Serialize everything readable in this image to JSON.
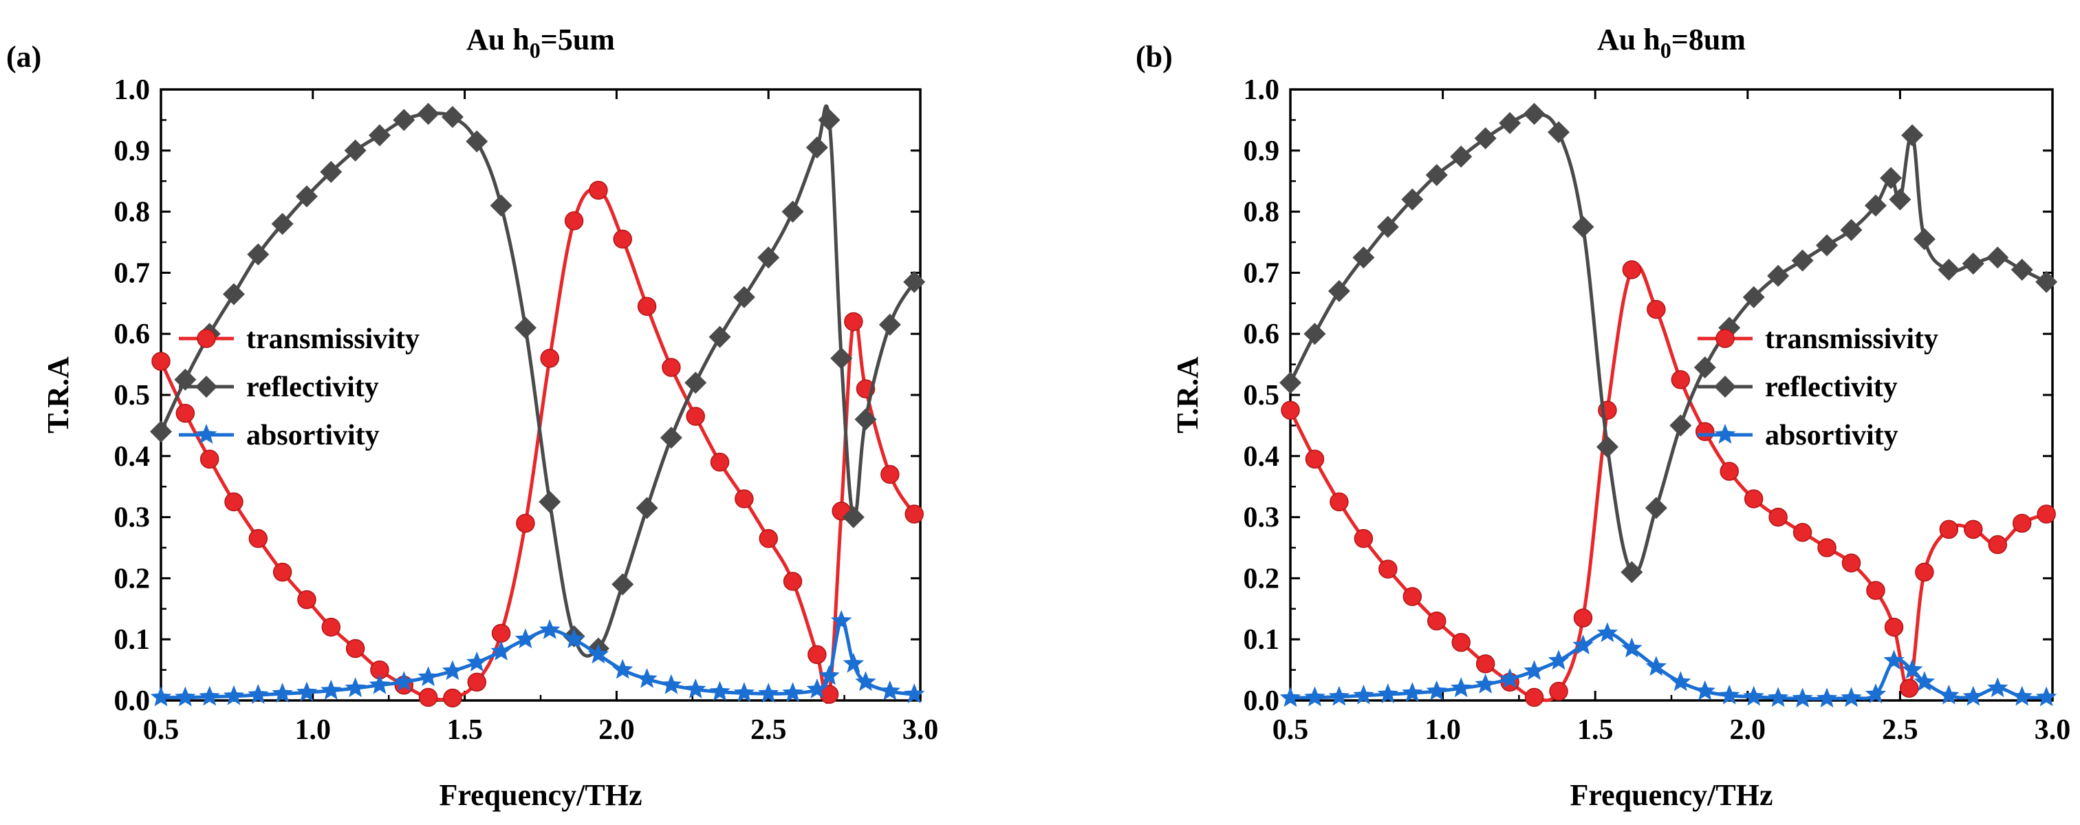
{
  "chart_data": [
    {
      "panel_label": "(a)",
      "type": "line",
      "title": "Au h0=5um",
      "title_main": "Au h",
      "title_sub": "0",
      "title_tail": "=5um",
      "xlabel": "Frequency/THz",
      "ylabel": "T.R.A",
      "xlim": [
        0.5,
        3.0
      ],
      "ylim": [
        0.0,
        1.0
      ],
      "xticks": [
        0.5,
        1.0,
        1.5,
        2.0,
        2.5,
        3.0
      ],
      "xtick_labels": [
        "0.5",
        "1.0",
        "1.5",
        "2.0",
        "2.5",
        "3.0"
      ],
      "yticks": [
        0.0,
        0.1,
        0.2,
        0.3,
        0.4,
        0.5,
        0.6,
        0.7,
        0.8,
        0.9,
        1.0
      ],
      "ytick_labels": [
        "0.0",
        "0.1",
        "0.2",
        "0.3",
        "0.4",
        "0.5",
        "0.6",
        "0.7",
        "0.8",
        "0.9",
        "1.0"
      ],
      "legend_position": "middle-left",
      "series": [
        {
          "name": "transmissivity",
          "color": "#e8272a",
          "marker": "circle",
          "x": [
            0.5,
            0.58,
            0.66,
            0.74,
            0.82,
            0.9,
            0.98,
            1.06,
            1.14,
            1.22,
            1.3,
            1.38,
            1.46,
            1.54,
            1.62,
            1.7,
            1.78,
            1.86,
            1.94,
            2.02,
            2.1,
            2.18,
            2.26,
            2.34,
            2.42,
            2.5,
            2.58,
            2.66,
            2.7,
            2.74,
            2.78,
            2.82,
            2.9,
            2.98
          ],
          "values": [
            0.555,
            0.47,
            0.395,
            0.325,
            0.265,
            0.21,
            0.165,
            0.12,
            0.085,
            0.05,
            0.025,
            0.005,
            0.004,
            0.03,
            0.11,
            0.29,
            0.56,
            0.785,
            0.835,
            0.755,
            0.645,
            0.545,
            0.465,
            0.39,
            0.33,
            0.265,
            0.195,
            0.075,
            0.01,
            0.31,
            0.62,
            0.51,
            0.37,
            0.305
          ]
        },
        {
          "name": "reflectivity",
          "color": "#4a4a4a",
          "marker": "diamond",
          "x": [
            0.5,
            0.58,
            0.66,
            0.74,
            0.82,
            0.9,
            0.98,
            1.06,
            1.14,
            1.22,
            1.3,
            1.38,
            1.46,
            1.54,
            1.62,
            1.7,
            1.78,
            1.86,
            1.94,
            2.02,
            2.1,
            2.18,
            2.26,
            2.34,
            2.42,
            2.5,
            2.58,
            2.66,
            2.7,
            2.74,
            2.78,
            2.82,
            2.9,
            2.98
          ],
          "values": [
            0.44,
            0.525,
            0.6,
            0.665,
            0.73,
            0.78,
            0.825,
            0.865,
            0.9,
            0.925,
            0.95,
            0.96,
            0.955,
            0.915,
            0.81,
            0.61,
            0.325,
            0.105,
            0.085,
            0.19,
            0.315,
            0.43,
            0.52,
            0.595,
            0.66,
            0.725,
            0.8,
            0.905,
            0.95,
            0.56,
            0.3,
            0.46,
            0.615,
            0.685
          ]
        },
        {
          "name": "absortivity",
          "color": "#1b6fd3",
          "marker": "star",
          "x": [
            0.5,
            0.58,
            0.66,
            0.74,
            0.82,
            0.9,
            0.98,
            1.06,
            1.14,
            1.22,
            1.3,
            1.38,
            1.46,
            1.54,
            1.62,
            1.7,
            1.78,
            1.86,
            1.94,
            2.02,
            2.1,
            2.18,
            2.26,
            2.34,
            2.42,
            2.5,
            2.58,
            2.66,
            2.7,
            2.74,
            2.78,
            2.82,
            2.9,
            2.98
          ],
          "values": [
            0.005,
            0.005,
            0.006,
            0.007,
            0.009,
            0.011,
            0.013,
            0.016,
            0.02,
            0.025,
            0.03,
            0.038,
            0.048,
            0.062,
            0.08,
            0.1,
            0.115,
            0.1,
            0.075,
            0.05,
            0.035,
            0.025,
            0.018,
            0.014,
            0.012,
            0.011,
            0.012,
            0.018,
            0.04,
            0.13,
            0.06,
            0.03,
            0.015,
            0.01
          ]
        }
      ]
    },
    {
      "panel_label": "(b)",
      "type": "line",
      "title": "Au h0=8um",
      "title_main": "Au h",
      "title_sub": "0",
      "title_tail": "=8um",
      "xlabel": "Frequency/THz",
      "ylabel": "T.R.A",
      "xlim": [
        0.5,
        3.0
      ],
      "ylim": [
        0.0,
        1.0
      ],
      "xticks": [
        0.5,
        1.0,
        1.5,
        2.0,
        2.5,
        3.0
      ],
      "xtick_labels": [
        "0.5",
        "1.0",
        "1.5",
        "2.0",
        "2.5",
        "3.0"
      ],
      "yticks": [
        0.0,
        0.1,
        0.2,
        0.3,
        0.4,
        0.5,
        0.6,
        0.7,
        0.8,
        0.9,
        1.0
      ],
      "ytick_labels": [
        "0.0",
        "0.1",
        "0.2",
        "0.3",
        "0.4",
        "0.5",
        "0.6",
        "0.7",
        "0.8",
        "0.9",
        "1.0"
      ],
      "legend_position": "middle-right",
      "series": [
        {
          "name": "transmissivity",
          "color": "#e8272a",
          "marker": "circle",
          "x": [
            0.5,
            0.58,
            0.66,
            0.74,
            0.82,
            0.9,
            0.98,
            1.06,
            1.14,
            1.22,
            1.3,
            1.38,
            1.46,
            1.54,
            1.62,
            1.7,
            1.78,
            1.86,
            1.94,
            2.02,
            2.1,
            2.18,
            2.26,
            2.34,
            2.42,
            2.48,
            2.53,
            2.58,
            2.66,
            2.74,
            2.82,
            2.9,
            2.98
          ],
          "values": [
            0.475,
            0.395,
            0.325,
            0.265,
            0.215,
            0.17,
            0.13,
            0.095,
            0.06,
            0.03,
            0.005,
            0.015,
            0.135,
            0.475,
            0.705,
            0.64,
            0.525,
            0.44,
            0.375,
            0.33,
            0.3,
            0.275,
            0.25,
            0.225,
            0.18,
            0.12,
            0.02,
            0.21,
            0.28,
            0.28,
            0.255,
            0.29,
            0.305
          ]
        },
        {
          "name": "reflectivity",
          "color": "#4a4a4a",
          "marker": "diamond",
          "x": [
            0.5,
            0.58,
            0.66,
            0.74,
            0.82,
            0.9,
            0.98,
            1.06,
            1.14,
            1.22,
            1.3,
            1.38,
            1.46,
            1.54,
            1.62,
            1.7,
            1.78,
            1.86,
            1.94,
            2.02,
            2.1,
            2.18,
            2.26,
            2.34,
            2.42,
            2.47,
            2.5,
            2.54,
            2.58,
            2.66,
            2.74,
            2.82,
            2.9,
            2.98
          ],
          "values": [
            0.52,
            0.6,
            0.67,
            0.725,
            0.775,
            0.82,
            0.86,
            0.89,
            0.92,
            0.945,
            0.96,
            0.93,
            0.775,
            0.415,
            0.21,
            0.315,
            0.45,
            0.545,
            0.61,
            0.66,
            0.695,
            0.72,
            0.745,
            0.77,
            0.81,
            0.855,
            0.82,
            0.925,
            0.755,
            0.705,
            0.715,
            0.725,
            0.705,
            0.685
          ]
        },
        {
          "name": "absortivity",
          "color": "#1b6fd3",
          "marker": "star",
          "x": [
            0.5,
            0.58,
            0.66,
            0.74,
            0.82,
            0.9,
            0.98,
            1.06,
            1.14,
            1.22,
            1.3,
            1.38,
            1.46,
            1.54,
            1.62,
            1.7,
            1.78,
            1.86,
            1.94,
            2.02,
            2.1,
            2.18,
            2.26,
            2.34,
            2.42,
            2.48,
            2.54,
            2.58,
            2.66,
            2.74,
            2.82,
            2.9,
            2.98
          ],
          "values": [
            0.004,
            0.005,
            0.006,
            0.008,
            0.01,
            0.012,
            0.015,
            0.02,
            0.026,
            0.035,
            0.048,
            0.065,
            0.09,
            0.11,
            0.085,
            0.055,
            0.03,
            0.015,
            0.008,
            0.006,
            0.004,
            0.003,
            0.003,
            0.004,
            0.01,
            0.065,
            0.05,
            0.03,
            0.008,
            0.006,
            0.02,
            0.006,
            0.005
          ]
        }
      ]
    }
  ]
}
